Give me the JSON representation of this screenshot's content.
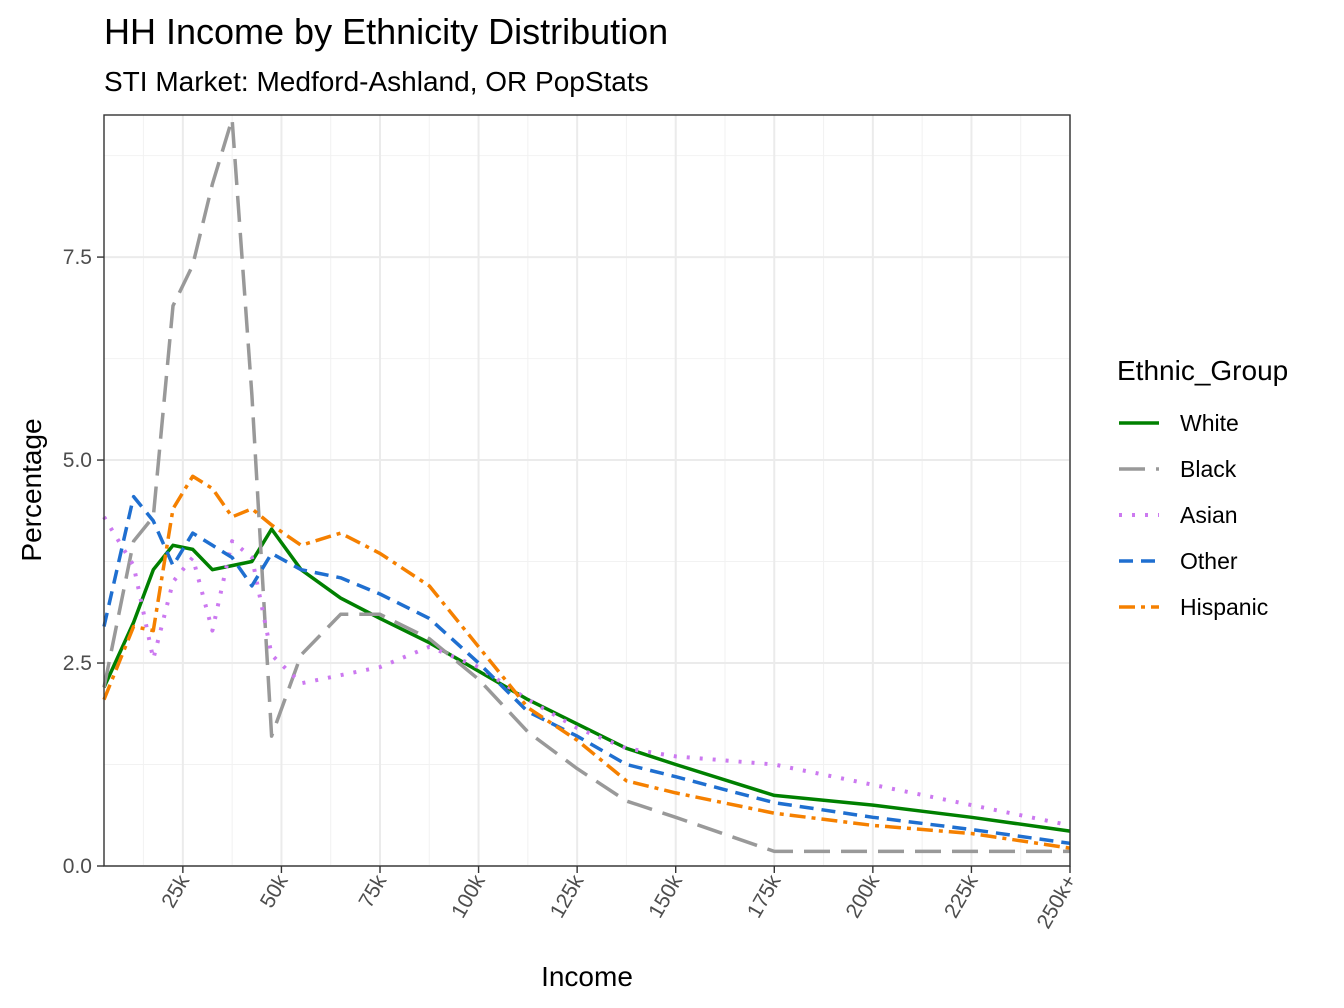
{
  "chart_data": {
    "type": "line",
    "title": "HH Income by Ethnicity Distribution",
    "subtitle": "STI Market: Medford-Ashland, OR PopStats",
    "xlabel": "Income",
    "ylabel": "Percentage",
    "x_unit": "thousand USD",
    "xlim": [
      5,
      250
    ],
    "ylim": [
      0,
      9.25
    ],
    "x_ticks": [
      25,
      50,
      75,
      100,
      125,
      150,
      175,
      200,
      225,
      250
    ],
    "x_tick_labels": [
      "25k",
      "50k",
      "75k",
      "100k",
      "125k",
      "150k",
      "175k",
      "200k",
      "225k",
      "250k+"
    ],
    "y_ticks": [
      0,
      2.5,
      5,
      7.5
    ],
    "y_tick_labels": [
      "0.0",
      "2.5",
      "5.0",
      "7.5"
    ],
    "grid": true,
    "legend_title": "Ethnic_Group",
    "legend_position": "right",
    "series": [
      {
        "name": "White",
        "color": "#008000",
        "dash": "solid",
        "x": [
          5,
          12.5,
          17.5,
          22.5,
          27.5,
          32.5,
          37.5,
          42.5,
          47.5,
          55,
          65,
          75,
          87.5,
          100,
          112.5,
          125,
          137.5,
          150,
          175,
          200,
          225,
          250
        ],
        "values": [
          2.2,
          3.0,
          3.65,
          3.95,
          3.9,
          3.65,
          3.7,
          3.75,
          4.15,
          3.65,
          3.3,
          3.05,
          2.75,
          2.4,
          2.05,
          1.75,
          1.45,
          1.25,
          0.87,
          0.75,
          0.6,
          0.43
        ]
      },
      {
        "name": "Black",
        "color": "#999999",
        "dash": "longdash",
        "x": [
          5,
          12.5,
          17.5,
          22.5,
          27.5,
          32.5,
          37.5,
          42.5,
          47.5,
          55,
          65,
          75,
          87.5,
          100,
          112.5,
          125,
          137.5,
          150,
          175,
          200,
          225,
          250
        ],
        "values": [
          2.2,
          4.0,
          4.3,
          6.9,
          7.4,
          8.4,
          9.2,
          5.8,
          1.6,
          2.6,
          3.1,
          3.1,
          2.8,
          2.3,
          1.65,
          1.2,
          0.8,
          0.6,
          0.18,
          0.18,
          0.18,
          0.18
        ]
      },
      {
        "name": "Asian",
        "color": "#CC79F0",
        "dash": "dotted",
        "x": [
          5,
          12.5,
          17.5,
          22.5,
          27.5,
          32.5,
          37.5,
          42.5,
          47.5,
          55,
          65,
          75,
          87.5,
          100,
          112.5,
          125,
          137.5,
          150,
          175,
          200,
          225,
          250
        ],
        "values": [
          4.3,
          3.7,
          2.55,
          3.5,
          3.8,
          2.9,
          4.0,
          3.8,
          2.6,
          2.25,
          2.35,
          2.45,
          2.7,
          2.45,
          2.05,
          1.7,
          1.45,
          1.35,
          1.25,
          1.0,
          0.75,
          0.5
        ]
      },
      {
        "name": "Other",
        "color": "#1F6FD0",
        "dash": "dashed",
        "x": [
          5,
          12.5,
          17.5,
          22.5,
          27.5,
          32.5,
          37.5,
          42.5,
          47.5,
          55,
          65,
          75,
          87.5,
          100,
          112.5,
          125,
          137.5,
          150,
          175,
          200,
          225,
          250
        ],
        "values": [
          2.95,
          4.55,
          4.25,
          3.7,
          4.1,
          3.95,
          3.8,
          3.45,
          3.85,
          3.65,
          3.55,
          3.35,
          3.05,
          2.5,
          1.9,
          1.6,
          1.25,
          1.1,
          0.78,
          0.6,
          0.45,
          0.28
        ]
      },
      {
        "name": "Hispanic",
        "color": "#F58000",
        "dash": "dotdash",
        "x": [
          5,
          12.5,
          17.5,
          22.5,
          27.5,
          32.5,
          37.5,
          42.5,
          47.5,
          55,
          65,
          75,
          87.5,
          100,
          112.5,
          125,
          137.5,
          150,
          175,
          200,
          225,
          250
        ],
        "values": [
          2.05,
          2.95,
          2.9,
          4.4,
          4.8,
          4.65,
          4.3,
          4.4,
          4.2,
          3.95,
          4.1,
          3.85,
          3.45,
          2.7,
          1.95,
          1.55,
          1.05,
          0.9,
          0.65,
          0.5,
          0.4,
          0.22
        ]
      }
    ]
  }
}
